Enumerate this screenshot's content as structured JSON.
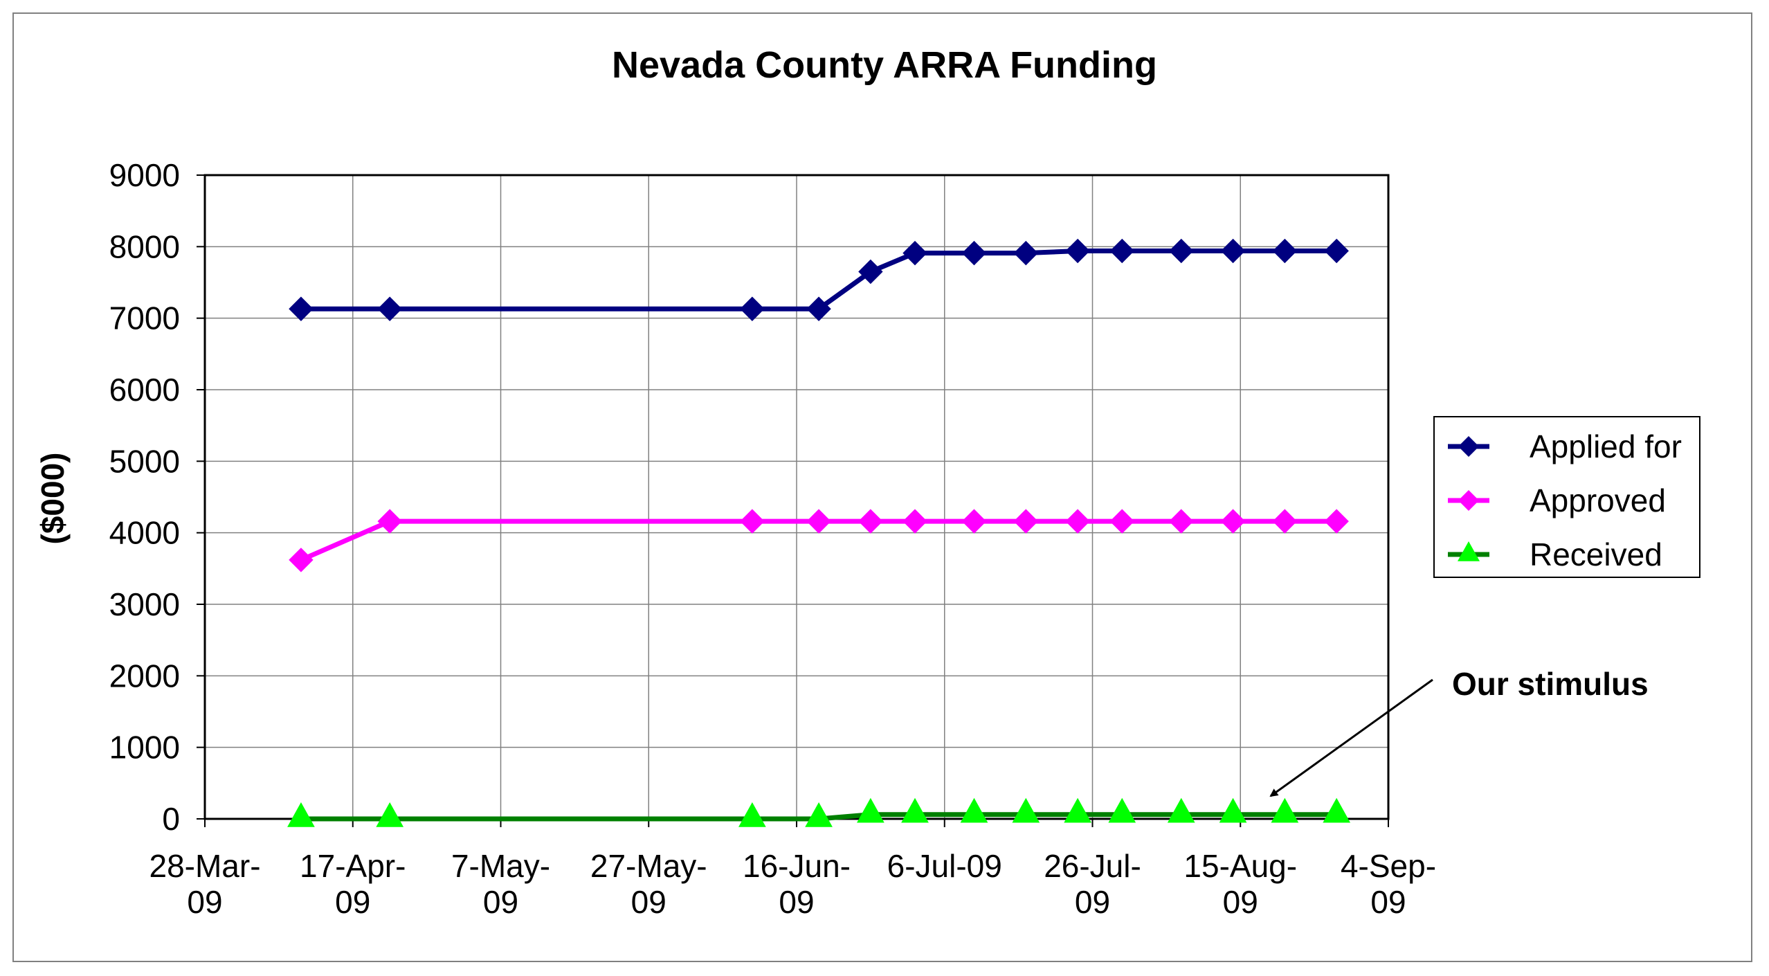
{
  "chart_data": {
    "type": "line",
    "title": "Nevada County ARRA Funding",
    "xlabel": "",
    "ylabel": "($000)",
    "ylim": [
      0,
      9000
    ],
    "yticks": [
      0,
      1000,
      2000,
      3000,
      4000,
      5000,
      6000,
      7000,
      8000,
      9000
    ],
    "xlim": [
      "2009-03-28",
      "2009-09-04"
    ],
    "xtick_labels": [
      [
        "28-Mar-",
        "09"
      ],
      [
        "17-Apr-",
        "09"
      ],
      [
        "7-May-",
        "09"
      ],
      [
        "27-May-",
        "09"
      ],
      [
        "16-Jun-",
        "09"
      ],
      [
        "6-Jul-09",
        ""
      ],
      [
        "26-Jul-",
        "09"
      ],
      [
        "15-Aug-",
        "09"
      ],
      [
        "4-Sep-",
        "09"
      ]
    ],
    "xtick_dates": [
      "2009-03-28",
      "2009-04-17",
      "2009-05-07",
      "2009-05-27",
      "2009-06-16",
      "2009-07-06",
      "2009-07-26",
      "2009-08-15",
      "2009-09-04"
    ],
    "x": [
      "2009-04-10",
      "2009-04-22",
      "2009-06-10",
      "2009-06-19",
      "2009-06-26",
      "2009-07-02",
      "2009-07-10",
      "2009-07-17",
      "2009-07-24",
      "2009-07-30",
      "2009-08-07",
      "2009-08-14",
      "2009-08-21",
      "2009-08-28"
    ],
    "grid": true,
    "legend_position": "right",
    "series": [
      {
        "name": "Applied for",
        "color": "#000080",
        "marker": "diamond",
        "values": [
          7130,
          7130,
          7130,
          7130,
          7650,
          7910,
          7910,
          7910,
          7940,
          7940,
          7940,
          7940,
          7940,
          7940
        ]
      },
      {
        "name": "Approved",
        "color": "#ff00ff",
        "marker": "diamond",
        "values": [
          3620,
          4160,
          4160,
          4160,
          4160,
          4160,
          4160,
          4160,
          4160,
          4160,
          4160,
          4160,
          4160,
          4160
        ]
      },
      {
        "name": "Received",
        "color": "#008000",
        "marker_color": "#00ff00",
        "marker": "triangle",
        "values": [
          0,
          0,
          0,
          0,
          60,
          60,
          60,
          60,
          60,
          60,
          60,
          60,
          60,
          60
        ]
      }
    ],
    "annotations": [
      {
        "text": "Our stimulus",
        "points_to": {
          "series": "Received",
          "date": "2009-08-21"
        }
      }
    ]
  }
}
